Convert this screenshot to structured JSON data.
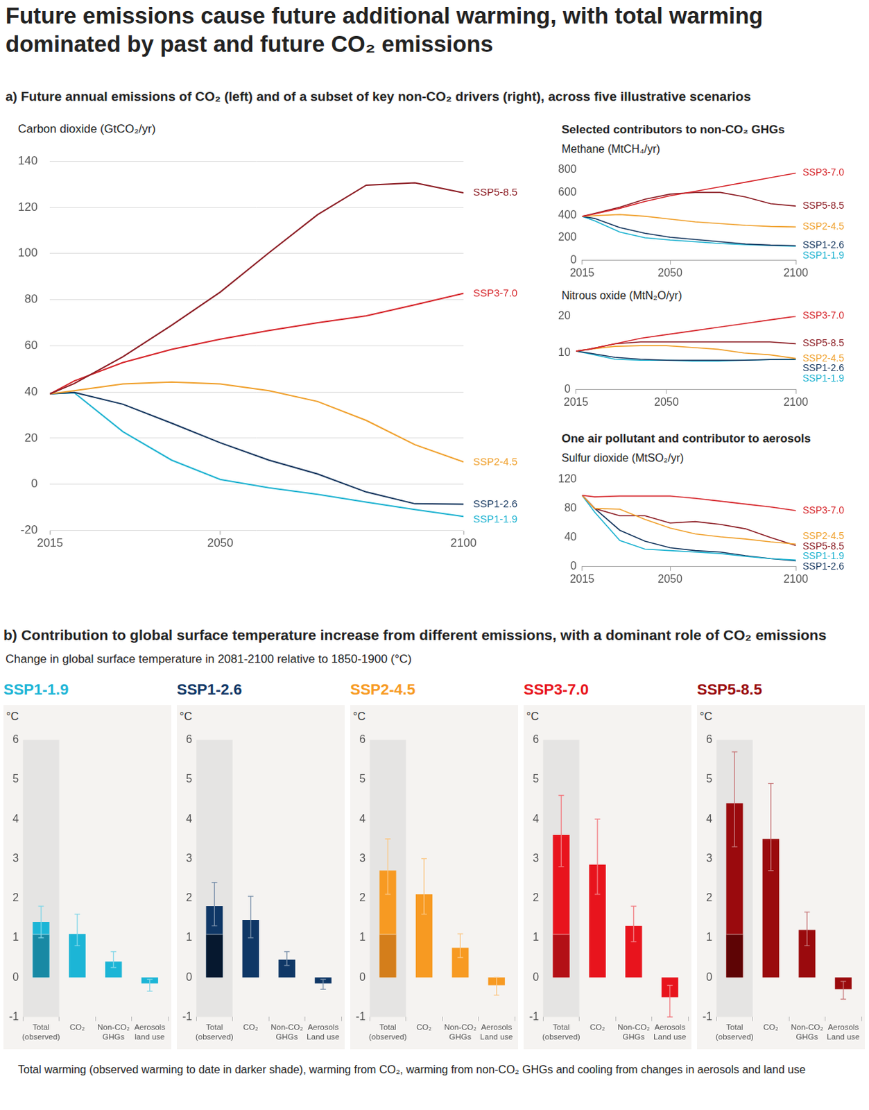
{
  "title": "Future emissions cause future additional warming, with total warming dominated by past and future CO₂ emissions",
  "panel_a_title": "a) Future annual emissions of CO₂ (left) and of a subset of key non-CO₂ drivers (right), across five illustrative scenarios",
  "non_co2_heading": "Selected contributors to non-CO₂ GHGs",
  "aerosol_heading": "One air pollutant and contributor to aerosols",
  "panel_b_title": "b) Contribution to global surface temperature increase from different emissions, with a dominant role of CO₂ emissions",
  "panel_b_subtitle": "Change in global surface temperature in 2081-2100 relative to 1850-1900 (°C)",
  "footnote": "Total warming (observed warming to date in darker shade), warming from CO₂, warming from non-CO₂ GHGs and cooling from changes in aerosols and land use",
  "chart_data": [
    {
      "type": "line",
      "title": "Carbon dioxide (GtCO₂/yr)",
      "x": [
        2015,
        2020,
        2030,
        2040,
        2050,
        2060,
        2070,
        2080,
        2090,
        2100
      ],
      "series": [
        {
          "name": "SSP5-8.5",
          "color": "#8c1d24",
          "values": [
            39.2,
            43.7,
            55.3,
            68.9,
            83.3,
            100.3,
            116.8,
            129.6,
            130.6,
            126.3
          ]
        },
        {
          "name": "SSP3-7.0",
          "color": "#d6262b",
          "values": [
            39.2,
            44.8,
            52.8,
            58.5,
            62.9,
            66.6,
            70.0,
            73.0,
            77.8,
            82.7
          ]
        },
        {
          "name": "SSP2-4.5",
          "color": "#f0a12e",
          "values": [
            39.2,
            40.6,
            43.5,
            44.3,
            43.5,
            40.6,
            35.9,
            27.7,
            17.2,
            9.7
          ]
        },
        {
          "name": "SSP1-2.6",
          "color": "#15375f",
          "values": [
            39.2,
            39.8,
            34.7,
            26.5,
            18.0,
            10.5,
            4.5,
            -3.3,
            -8.4,
            -8.6
          ]
        },
        {
          "name": "SSP1-1.9",
          "color": "#1fb3d1",
          "values": [
            39.2,
            39.7,
            22.8,
            10.5,
            2.1,
            -1.5,
            -4.3,
            -7.7,
            -10.9,
            -13.9
          ]
        }
      ],
      "xlim": [
        2015,
        2100
      ],
      "xticks": [
        2015,
        2050,
        2100
      ],
      "ylim": [
        -20,
        140
      ],
      "yticks": [
        -20,
        0,
        20,
        40,
        60,
        80,
        100,
        120,
        140
      ],
      "grid": true
    },
    {
      "type": "line",
      "title": "Methane (MtCH₄/yr)",
      "x": [
        2015,
        2020,
        2030,
        2040,
        2050,
        2060,
        2070,
        2080,
        2090,
        2100
      ],
      "series": [
        {
          "name": "SSP3-7.0",
          "color": "#d6262b",
          "values": [
            389,
            410,
            460,
            520,
            570,
            610,
            650,
            690,
            730,
            770
          ]
        },
        {
          "name": "SSP5-8.5",
          "color": "#8c1d24",
          "values": [
            389,
            415,
            470,
            540,
            585,
            600,
            600,
            560,
            500,
            480
          ]
        },
        {
          "name": "SSP2-4.5",
          "color": "#f0a12e",
          "values": [
            389,
            395,
            405,
            390,
            365,
            340,
            325,
            310,
            300,
            295
          ]
        },
        {
          "name": "SSP1-2.6",
          "color": "#15375f",
          "values": [
            389,
            370,
            290,
            240,
            205,
            185,
            165,
            145,
            135,
            130
          ]
        },
        {
          "name": "SSP1-1.9",
          "color": "#1fb3d1",
          "values": [
            389,
            350,
            250,
            200,
            180,
            165,
            150,
            140,
            132,
            125
          ]
        }
      ],
      "xlim": [
        2015,
        2100
      ],
      "xticks": [
        2015,
        2050,
        2100
      ],
      "ylim": [
        0,
        800
      ],
      "yticks": [
        0,
        200,
        400,
        600,
        800
      ],
      "grid": false
    },
    {
      "type": "line",
      "title": "Nitrous oxide (MtN₂O/yr)",
      "x": [
        2015,
        2020,
        2030,
        2040,
        2050,
        2060,
        2070,
        2080,
        2090,
        2100
      ],
      "series": [
        {
          "name": "SSP3-7.0",
          "color": "#d6262b",
          "values": [
            10.5,
            11,
            12.5,
            14,
            15,
            16,
            17,
            18,
            19,
            20
          ]
        },
        {
          "name": "SSP5-8.5",
          "color": "#8c1d24",
          "values": [
            10.5,
            11,
            12.5,
            13,
            13,
            13,
            13,
            13,
            13,
            12.5
          ]
        },
        {
          "name": "SSP2-4.5",
          "color": "#f0a12e",
          "values": [
            10.5,
            11,
            11.8,
            12,
            12,
            11.5,
            11,
            10,
            9.5,
            8.5
          ]
        },
        {
          "name": "SSP1-2.6",
          "color": "#15375f",
          "values": [
            10.5,
            10,
            8.8,
            8.3,
            8,
            8,
            8,
            8,
            8.2,
            8.3
          ]
        },
        {
          "name": "SSP1-1.9",
          "color": "#1fb3d1",
          "values": [
            10.5,
            9.8,
            8.3,
            8,
            8,
            7.8,
            7.8,
            8,
            8.2,
            8.2
          ]
        }
      ],
      "xlim": [
        2015,
        2100
      ],
      "xticks": [
        2015,
        2050,
        2100
      ],
      "ylim": [
        0,
        20
      ],
      "yticks": [
        0,
        10,
        20
      ],
      "grid": false
    },
    {
      "type": "line",
      "title": "Sulfur dioxide (MtSO₂/yr)",
      "x": [
        2015,
        2020,
        2030,
        2040,
        2050,
        2060,
        2070,
        2080,
        2090,
        2100
      ],
      "series": [
        {
          "name": "SSP3-7.0",
          "color": "#d6262b",
          "values": [
            98,
            96,
            97,
            97,
            97,
            94,
            90,
            86,
            82,
            77
          ]
        },
        {
          "name": "SSP2-4.5",
          "color": "#f0a12e",
          "values": [
            98,
            80,
            79,
            65,
            53,
            45,
            41,
            38,
            34,
            31
          ]
        },
        {
          "name": "SSP5-8.5",
          "color": "#8c1d24",
          "values": [
            98,
            80,
            70,
            70,
            60,
            62,
            58,
            52,
            40,
            29
          ]
        },
        {
          "name": "SSP1-1.9",
          "color": "#1fb3d1",
          "values": [
            98,
            75,
            36,
            24,
            22,
            20,
            18,
            14,
            11,
            9
          ]
        },
        {
          "name": "SSP1-2.6",
          "color": "#15375f",
          "values": [
            98,
            80,
            50,
            35,
            26,
            22,
            20,
            15,
            11,
            8
          ]
        }
      ],
      "xlim": [
        2015,
        2100
      ],
      "xticks": [
        2015,
        2050,
        2100
      ],
      "ylim": [
        0,
        120
      ],
      "yticks": [
        0,
        40,
        80,
        120
      ],
      "grid": false
    },
    {
      "type": "bar",
      "title": "SSP1-1.9",
      "y_label": "°C",
      "categories": [
        [
          "Total",
          "(observed)"
        ],
        [
          "CO₂"
        ],
        [
          "Non-CO₂",
          "GHGs"
        ],
        [
          "Aerosols",
          "land use"
        ]
      ],
      "values": [
        1.4,
        1.1,
        0.4,
        -0.15
      ],
      "color": "#1cb5d6",
      "observed_values": [
        1.1,
        null,
        null,
        null
      ],
      "observed_color": "#1889a4",
      "error_low": [
        1.0,
        0.8,
        0.25,
        -0.35
      ],
      "error_high": [
        1.8,
        1.6,
        0.65,
        -0.05
      ],
      "ylim": [
        -1,
        6
      ],
      "yticks": [
        -1,
        0,
        1,
        2,
        3,
        4,
        5,
        6
      ],
      "grid": false
    },
    {
      "type": "bar",
      "title": "SSP1-2.6",
      "y_label": "°C",
      "categories": [
        [
          "Total",
          "(observed)"
        ],
        [
          "CO₂"
        ],
        [
          "Non-CO₂",
          "GHGs"
        ],
        [
          "Aerosols",
          "Land use"
        ]
      ],
      "values": [
        1.8,
        1.45,
        0.45,
        -0.15
      ],
      "color": "#0f3766",
      "observed_values": [
        1.1,
        null,
        null,
        null
      ],
      "observed_color": "#06182f",
      "error_low": [
        1.3,
        1.0,
        0.3,
        -0.3
      ],
      "error_high": [
        2.4,
        2.05,
        0.65,
        -0.05
      ],
      "ylim": [
        -1,
        6
      ],
      "yticks": [
        -1,
        0,
        1,
        2,
        3,
        4,
        5,
        6
      ],
      "grid": false
    },
    {
      "type": "bar",
      "title": "SSP2-4.5",
      "y_label": "°C",
      "categories": [
        [
          "Total",
          "(observed)"
        ],
        [
          "CO₂"
        ],
        [
          "Non-CO₂",
          "GHGs"
        ],
        [
          "Aerosols",
          "Land use"
        ]
      ],
      "values": [
        2.7,
        2.1,
        0.75,
        -0.2
      ],
      "color": "#f79a22",
      "observed_values": [
        1.1,
        null,
        null,
        null
      ],
      "observed_color": "#d47e1b",
      "error_low": [
        2.1,
        1.6,
        0.5,
        -0.45
      ],
      "error_high": [
        3.5,
        3.0,
        1.1,
        0
      ],
      "ylim": [
        -1,
        6
      ],
      "yticks": [
        -1,
        0,
        1,
        2,
        3,
        4,
        5,
        6
      ],
      "grid": false
    },
    {
      "type": "bar",
      "title": "SSP3-7.0",
      "y_label": "°C",
      "categories": [
        [
          "Total",
          "(observed)"
        ],
        [
          "CO₂"
        ],
        [
          "Non-CO₂",
          "GHGs"
        ],
        [
          "Aerosols",
          "Land use"
        ]
      ],
      "values": [
        3.6,
        2.85,
        1.3,
        -0.5
      ],
      "color": "#e8141d",
      "observed_values": [
        1.1,
        null,
        null,
        null
      ],
      "observed_color": "#b31016",
      "error_low": [
        2.8,
        2.1,
        0.9,
        -1.0
      ],
      "error_high": [
        4.6,
        4.0,
        1.8,
        -0.2
      ],
      "ylim": [
        -1,
        6
      ],
      "yticks": [
        -1,
        0,
        1,
        2,
        3,
        4,
        5,
        6
      ],
      "grid": false
    },
    {
      "type": "bar",
      "title": "SSP5-8.5",
      "y_label": "°C",
      "categories": [
        [
          "Total",
          "(observed)"
        ],
        [
          "CO₂"
        ],
        [
          "Non-CO₂",
          "GHGs"
        ],
        [
          "Aerosols",
          "Land use"
        ]
      ],
      "values": [
        4.4,
        3.5,
        1.2,
        -0.3
      ],
      "color": "#9a0a0d",
      "observed_values": [
        1.1,
        null,
        null,
        null
      ],
      "observed_color": "#5e0405",
      "error_low": [
        3.3,
        2.7,
        0.8,
        -0.55
      ],
      "error_high": [
        5.7,
        4.9,
        1.65,
        -0.1
      ],
      "ylim": [
        -1,
        6
      ],
      "yticks": [
        -1,
        0,
        1,
        2,
        3,
        4,
        5,
        6
      ],
      "grid": false
    }
  ]
}
